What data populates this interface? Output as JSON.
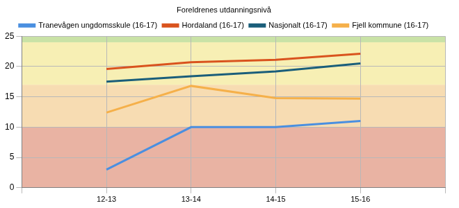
{
  "chart_data": {
    "type": "line",
    "title": "Foreldrenes utdanningsnivå",
    "categories": [
      null,
      "12-13",
      "13-14",
      "14-15",
      "15-16",
      null
    ],
    "series": [
      {
        "name": "Tranevågen ungdomsskule (16-17)",
        "color": "#4a8fe0",
        "values": [
          null,
          3,
          10,
          10,
          11,
          null
        ]
      },
      {
        "name": "Hordaland (16-17)",
        "color": "#d9531e",
        "values": [
          null,
          19.6,
          20.7,
          21.1,
          22.1,
          null
        ]
      },
      {
        "name": "Nasjonalt (16-17)",
        "color": "#1a5e7a",
        "values": [
          null,
          17.5,
          18.4,
          19.2,
          20.5,
          null
        ]
      },
      {
        "name": "Fjell kommune (16-17)",
        "color": "#f5b04a",
        "values": [
          null,
          12.4,
          16.8,
          14.8,
          14.7,
          null
        ]
      }
    ],
    "ylim": [
      0,
      25
    ],
    "yticks": [
      0,
      5,
      10,
      15,
      20,
      25
    ],
    "grid": true,
    "legend": "top",
    "bands": [
      {
        "from": 0,
        "to": 10,
        "color": "#e9b3a3"
      },
      {
        "from": 10,
        "to": 17,
        "color": "#f7dcb2"
      },
      {
        "from": 17,
        "to": 24,
        "color": "#f7efb4"
      },
      {
        "from": 24,
        "to": 25,
        "color": "#c9e2a6"
      }
    ]
  }
}
